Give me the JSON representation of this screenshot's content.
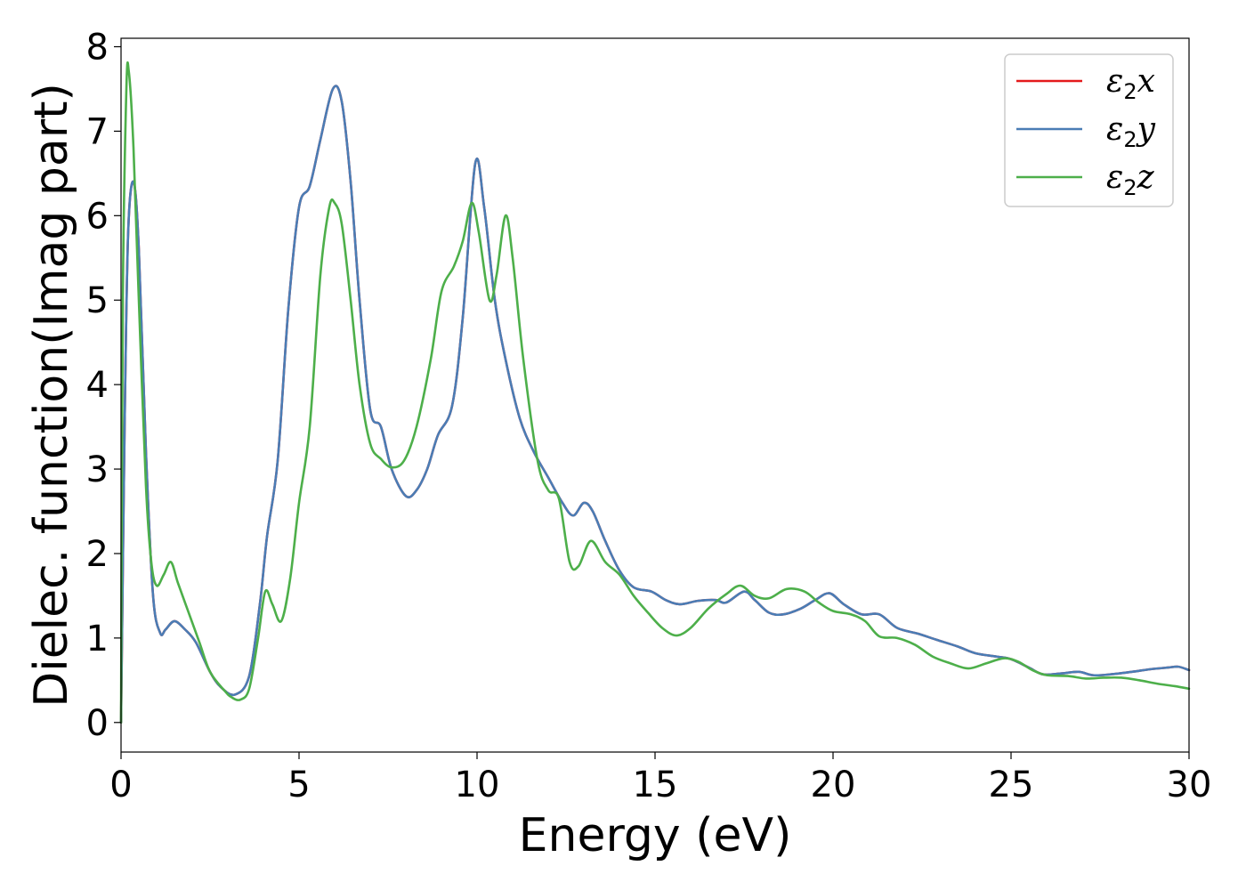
{
  "chart_data": {
    "type": "line",
    "title": "",
    "xlabel": "Energy (eV)",
    "ylabel": "Dielec. function(Imag part)",
    "xlim": [
      0,
      30
    ],
    "ylim": [
      -0.35,
      8.1
    ],
    "xticks": [
      0,
      5,
      10,
      15,
      20,
      25,
      30
    ],
    "yticks": [
      0,
      1,
      2,
      3,
      4,
      5,
      6,
      7,
      8
    ],
    "grid": false,
    "legend_position": "top-right",
    "series": [
      {
        "name": "ε₂x",
        "label_base": "ε",
        "label_sub": "2",
        "label_var": "x",
        "color": "#e41a1c",
        "points": [
          [
            0,
            0
          ],
          [
            0.1,
            3.5
          ],
          [
            0.2,
            5.8
          ],
          [
            0.35,
            6.4
          ],
          [
            0.5,
            5.6
          ],
          [
            0.7,
            3.2
          ],
          [
            0.9,
            1.5
          ],
          [
            1.1,
            1.06
          ],
          [
            1.25,
            1.1
          ],
          [
            1.5,
            1.2
          ],
          [
            1.8,
            1.1
          ],
          [
            2.1,
            0.95
          ],
          [
            2.5,
            0.6
          ],
          [
            2.8,
            0.42
          ],
          [
            3.2,
            0.33
          ],
          [
            3.6,
            0.55
          ],
          [
            3.9,
            1.4
          ],
          [
            4.1,
            2.2
          ],
          [
            4.4,
            3.1
          ],
          [
            4.7,
            4.9
          ],
          [
            5.0,
            6.1
          ],
          [
            5.3,
            6.35
          ],
          [
            5.6,
            6.9
          ],
          [
            5.95,
            7.5
          ],
          [
            6.2,
            7.35
          ],
          [
            6.45,
            6.4
          ],
          [
            6.7,
            5.0
          ],
          [
            7.0,
            3.7
          ],
          [
            7.3,
            3.5
          ],
          [
            7.6,
            3.0
          ],
          [
            8.0,
            2.68
          ],
          [
            8.3,
            2.75
          ],
          [
            8.6,
            3.0
          ],
          [
            8.9,
            3.4
          ],
          [
            9.3,
            3.75
          ],
          [
            9.6,
            4.8
          ],
          [
            9.95,
            6.62
          ],
          [
            10.2,
            6.1
          ],
          [
            10.5,
            5.0
          ],
          [
            10.8,
            4.3
          ],
          [
            11.2,
            3.6
          ],
          [
            11.6,
            3.2
          ],
          [
            12.0,
            2.9
          ],
          [
            12.4,
            2.6
          ],
          [
            12.7,
            2.45
          ],
          [
            13.0,
            2.6
          ],
          [
            13.25,
            2.5
          ],
          [
            13.6,
            2.15
          ],
          [
            14.0,
            1.8
          ],
          [
            14.4,
            1.6
          ],
          [
            14.9,
            1.55
          ],
          [
            15.3,
            1.45
          ],
          [
            15.7,
            1.4
          ],
          [
            16.2,
            1.44
          ],
          [
            16.7,
            1.45
          ],
          [
            17.0,
            1.42
          ],
          [
            17.5,
            1.55
          ],
          [
            17.8,
            1.45
          ],
          [
            18.2,
            1.3
          ],
          [
            18.6,
            1.28
          ],
          [
            19.1,
            1.35
          ],
          [
            19.5,
            1.45
          ],
          [
            19.9,
            1.53
          ],
          [
            20.3,
            1.4
          ],
          [
            20.8,
            1.28
          ],
          [
            21.3,
            1.28
          ],
          [
            21.8,
            1.12
          ],
          [
            22.4,
            1.05
          ],
          [
            22.9,
            0.98
          ],
          [
            23.5,
            0.9
          ],
          [
            24.0,
            0.82
          ],
          [
            24.6,
            0.78
          ],
          [
            25.0,
            0.75
          ],
          [
            25.5,
            0.65
          ],
          [
            25.9,
            0.57
          ],
          [
            26.4,
            0.58
          ],
          [
            26.9,
            0.6
          ],
          [
            27.3,
            0.56
          ],
          [
            27.8,
            0.57
          ],
          [
            28.4,
            0.6
          ],
          [
            28.9,
            0.63
          ],
          [
            29.4,
            0.65
          ],
          [
            29.7,
            0.66
          ],
          [
            30.0,
            0.62
          ]
        ]
      },
      {
        "name": "ε₂y",
        "label_base": "ε",
        "label_sub": "2",
        "label_var": "y",
        "color": "#4a7db5",
        "points": [
          [
            0,
            0
          ],
          [
            0.1,
            3.5
          ],
          [
            0.2,
            5.8
          ],
          [
            0.35,
            6.4
          ],
          [
            0.5,
            5.6
          ],
          [
            0.7,
            3.2
          ],
          [
            0.9,
            1.5
          ],
          [
            1.1,
            1.06
          ],
          [
            1.25,
            1.1
          ],
          [
            1.5,
            1.2
          ],
          [
            1.8,
            1.1
          ],
          [
            2.1,
            0.95
          ],
          [
            2.5,
            0.6
          ],
          [
            2.8,
            0.42
          ],
          [
            3.2,
            0.33
          ],
          [
            3.6,
            0.55
          ],
          [
            3.9,
            1.4
          ],
          [
            4.1,
            2.2
          ],
          [
            4.4,
            3.1
          ],
          [
            4.7,
            4.9
          ],
          [
            5.0,
            6.1
          ],
          [
            5.3,
            6.35
          ],
          [
            5.6,
            6.9
          ],
          [
            5.95,
            7.5
          ],
          [
            6.2,
            7.35
          ],
          [
            6.45,
            6.4
          ],
          [
            6.7,
            5.0
          ],
          [
            7.0,
            3.7
          ],
          [
            7.3,
            3.5
          ],
          [
            7.6,
            3.0
          ],
          [
            8.0,
            2.68
          ],
          [
            8.3,
            2.75
          ],
          [
            8.6,
            3.0
          ],
          [
            8.9,
            3.4
          ],
          [
            9.3,
            3.75
          ],
          [
            9.6,
            4.8
          ],
          [
            9.95,
            6.62
          ],
          [
            10.2,
            6.1
          ],
          [
            10.5,
            5.0
          ],
          [
            10.8,
            4.3
          ],
          [
            11.2,
            3.6
          ],
          [
            11.6,
            3.2
          ],
          [
            12.0,
            2.9
          ],
          [
            12.4,
            2.6
          ],
          [
            12.7,
            2.45
          ],
          [
            13.0,
            2.6
          ],
          [
            13.25,
            2.5
          ],
          [
            13.6,
            2.15
          ],
          [
            14.0,
            1.8
          ],
          [
            14.4,
            1.6
          ],
          [
            14.9,
            1.55
          ],
          [
            15.3,
            1.45
          ],
          [
            15.7,
            1.4
          ],
          [
            16.2,
            1.44
          ],
          [
            16.7,
            1.45
          ],
          [
            17.0,
            1.42
          ],
          [
            17.5,
            1.55
          ],
          [
            17.8,
            1.45
          ],
          [
            18.2,
            1.3
          ],
          [
            18.6,
            1.28
          ],
          [
            19.1,
            1.35
          ],
          [
            19.5,
            1.45
          ],
          [
            19.9,
            1.53
          ],
          [
            20.3,
            1.4
          ],
          [
            20.8,
            1.28
          ],
          [
            21.3,
            1.28
          ],
          [
            21.8,
            1.12
          ],
          [
            22.4,
            1.05
          ],
          [
            22.9,
            0.98
          ],
          [
            23.5,
            0.9
          ],
          [
            24.0,
            0.82
          ],
          [
            24.6,
            0.78
          ],
          [
            25.0,
            0.75
          ],
          [
            25.5,
            0.65
          ],
          [
            25.9,
            0.57
          ],
          [
            26.4,
            0.58
          ],
          [
            26.9,
            0.6
          ],
          [
            27.3,
            0.56
          ],
          [
            27.8,
            0.57
          ],
          [
            28.4,
            0.6
          ],
          [
            28.9,
            0.63
          ],
          [
            29.4,
            0.65
          ],
          [
            29.7,
            0.66
          ],
          [
            30.0,
            0.62
          ]
        ]
      },
      {
        "name": "ε₂z",
        "label_base": "ε",
        "label_sub": "2",
        "label_var": "z",
        "color": "#4daf4a",
        "points": [
          [
            0,
            0
          ],
          [
            0.05,
            5.0
          ],
          [
            0.15,
            7.5
          ],
          [
            0.22,
            7.7
          ],
          [
            0.35,
            6.8
          ],
          [
            0.5,
            5.0
          ],
          [
            0.7,
            2.8
          ],
          [
            0.85,
            1.9
          ],
          [
            1.0,
            1.62
          ],
          [
            1.2,
            1.75
          ],
          [
            1.4,
            1.9
          ],
          [
            1.6,
            1.65
          ],
          [
            1.9,
            1.3
          ],
          [
            2.2,
            0.95
          ],
          [
            2.5,
            0.6
          ],
          [
            2.9,
            0.38
          ],
          [
            3.1,
            0.3
          ],
          [
            3.35,
            0.27
          ],
          [
            3.6,
            0.4
          ],
          [
            3.85,
            1.0
          ],
          [
            4.05,
            1.55
          ],
          [
            4.25,
            1.4
          ],
          [
            4.5,
            1.2
          ],
          [
            4.75,
            1.7
          ],
          [
            5.0,
            2.6
          ],
          [
            5.3,
            3.5
          ],
          [
            5.6,
            5.3
          ],
          [
            5.85,
            6.1
          ],
          [
            6.0,
            6.15
          ],
          [
            6.2,
            5.9
          ],
          [
            6.45,
            5.0
          ],
          [
            6.7,
            4.0
          ],
          [
            7.0,
            3.3
          ],
          [
            7.3,
            3.12
          ],
          [
            7.6,
            3.02
          ],
          [
            7.95,
            3.1
          ],
          [
            8.3,
            3.5
          ],
          [
            8.7,
            4.3
          ],
          [
            9.0,
            5.1
          ],
          [
            9.35,
            5.4
          ],
          [
            9.6,
            5.7
          ],
          [
            9.85,
            6.15
          ],
          [
            10.05,
            5.8
          ],
          [
            10.35,
            5.0
          ],
          [
            10.55,
            5.3
          ],
          [
            10.8,
            6.0
          ],
          [
            11.0,
            5.5
          ],
          [
            11.3,
            4.3
          ],
          [
            11.7,
            3.1
          ],
          [
            12.0,
            2.75
          ],
          [
            12.3,
            2.65
          ],
          [
            12.6,
            1.9
          ],
          [
            12.85,
            1.85
          ],
          [
            13.2,
            2.15
          ],
          [
            13.6,
            1.9
          ],
          [
            14.0,
            1.75
          ],
          [
            14.4,
            1.5
          ],
          [
            14.8,
            1.3
          ],
          [
            15.2,
            1.12
          ],
          [
            15.6,
            1.03
          ],
          [
            16.0,
            1.12
          ],
          [
            16.5,
            1.35
          ],
          [
            17.0,
            1.52
          ],
          [
            17.4,
            1.62
          ],
          [
            17.8,
            1.5
          ],
          [
            18.2,
            1.47
          ],
          [
            18.7,
            1.58
          ],
          [
            19.2,
            1.55
          ],
          [
            19.6,
            1.42
          ],
          [
            20.0,
            1.32
          ],
          [
            20.5,
            1.28
          ],
          [
            20.9,
            1.2
          ],
          [
            21.3,
            1.02
          ],
          [
            21.8,
            1.0
          ],
          [
            22.3,
            0.92
          ],
          [
            22.8,
            0.78
          ],
          [
            23.3,
            0.7
          ],
          [
            23.8,
            0.64
          ],
          [
            24.3,
            0.7
          ],
          [
            24.8,
            0.76
          ],
          [
            25.2,
            0.72
          ],
          [
            25.6,
            0.62
          ],
          [
            26.0,
            0.56
          ],
          [
            26.6,
            0.55
          ],
          [
            27.1,
            0.52
          ],
          [
            27.6,
            0.53
          ],
          [
            28.1,
            0.53
          ],
          [
            28.6,
            0.5
          ],
          [
            29.1,
            0.46
          ],
          [
            29.6,
            0.43
          ],
          [
            30.0,
            0.4
          ]
        ]
      }
    ]
  }
}
